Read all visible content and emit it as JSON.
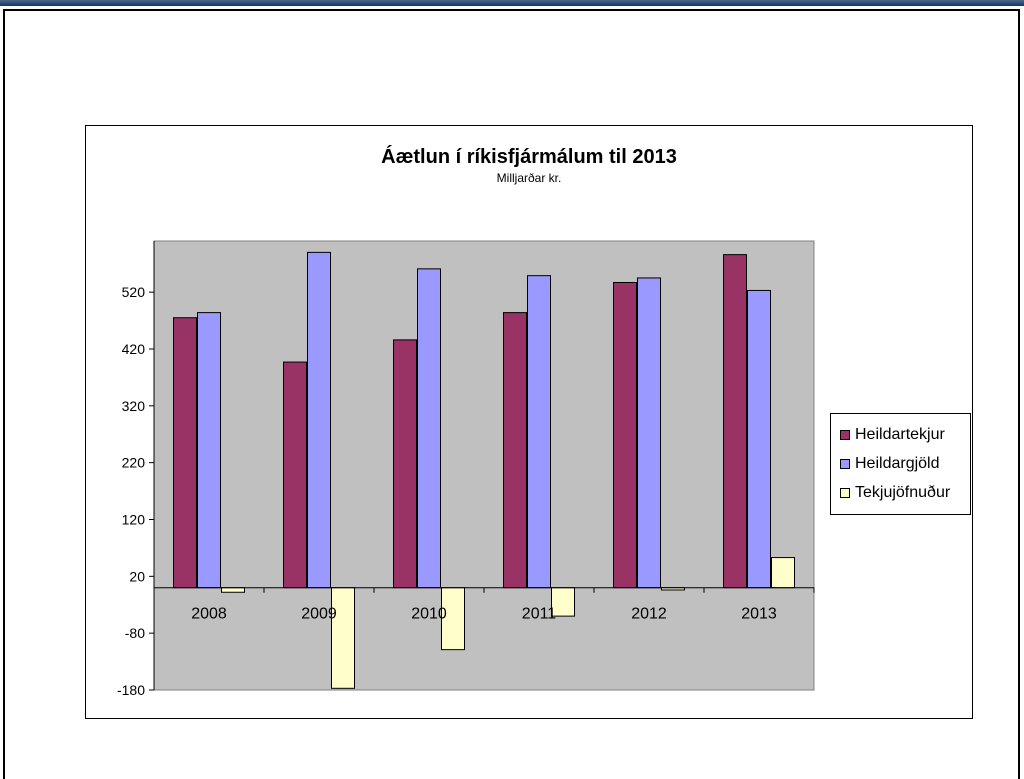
{
  "chart_data": {
    "type": "bar",
    "title": "Áætlun í ríkisfjármálum til 2013",
    "subtitle": "Milljarðar kr.",
    "xlabel": "",
    "ylabel": "",
    "categories": [
      "2008",
      "2009",
      "2010",
      "2011",
      "2012",
      "2013"
    ],
    "series": [
      {
        "name": "Heildartekjur",
        "color": "#993366",
        "values": [
          475,
          397,
          436,
          484,
          537,
          586
        ]
      },
      {
        "name": "Heildargjöld",
        "color": "#9999ff",
        "values": [
          484,
          590,
          561,
          549,
          545,
          523
        ]
      },
      {
        "name": "Tekjujöfnuður",
        "color": "#ffffcc",
        "values": [
          -8,
          -177,
          -109,
          -50,
          -4,
          53
        ]
      }
    ],
    "yticks": [
      -180,
      -80,
      20,
      120,
      220,
      320,
      420,
      520
    ],
    "ylim": [
      -180,
      610
    ],
    "plot_background": "#c0c0c0",
    "grid": false,
    "legend_position": "right"
  }
}
